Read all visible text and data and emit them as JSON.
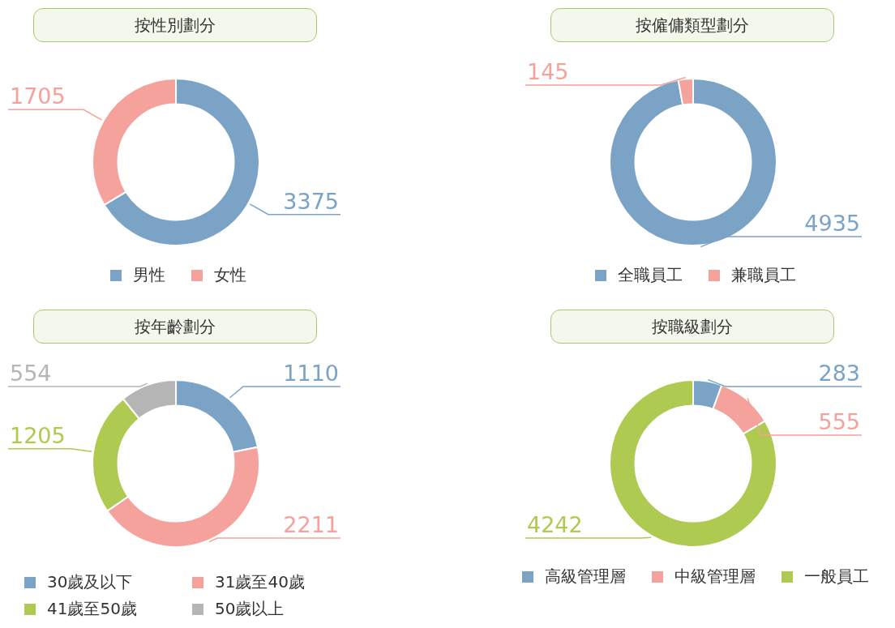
{
  "chart_data": [
    {
      "type": "donut",
      "title": "按性別劃分",
      "categories": [
        "男性",
        "女性"
      ],
      "values": [
        3375,
        1705
      ],
      "colors": [
        "#7ba3c6",
        "#f4a29b"
      ],
      "data_labels": true,
      "legend": "bottom"
    },
    {
      "type": "donut",
      "title": "按僱傭類型劃分",
      "categories": [
        "全職員工",
        "兼職員工"
      ],
      "values": [
        4935,
        145
      ],
      "colors": [
        "#7ba3c6",
        "#f4a29b"
      ],
      "data_labels": true,
      "legend": "bottom"
    },
    {
      "type": "donut",
      "title": "按年齡劃分",
      "categories": [
        "30歲及以下",
        "31歲至40歲",
        "41歲至50歲",
        "50歲以上"
      ],
      "values": [
        1110,
        2211,
        1205,
        554
      ],
      "colors": [
        "#7ba3c6",
        "#f4a29b",
        "#aeca50",
        "#b5b5b5"
      ],
      "data_labels": true,
      "legend": "bottom"
    },
    {
      "type": "donut",
      "title": "按職級劃分",
      "categories": [
        "高級管理層",
        "中級管理層",
        "一般員工"
      ],
      "values": [
        283,
        555,
        4242
      ],
      "colors": [
        "#7ba3c6",
        "#f4a29b",
        "#aeca50"
      ],
      "data_labels": true,
      "legend": "bottom"
    }
  ]
}
